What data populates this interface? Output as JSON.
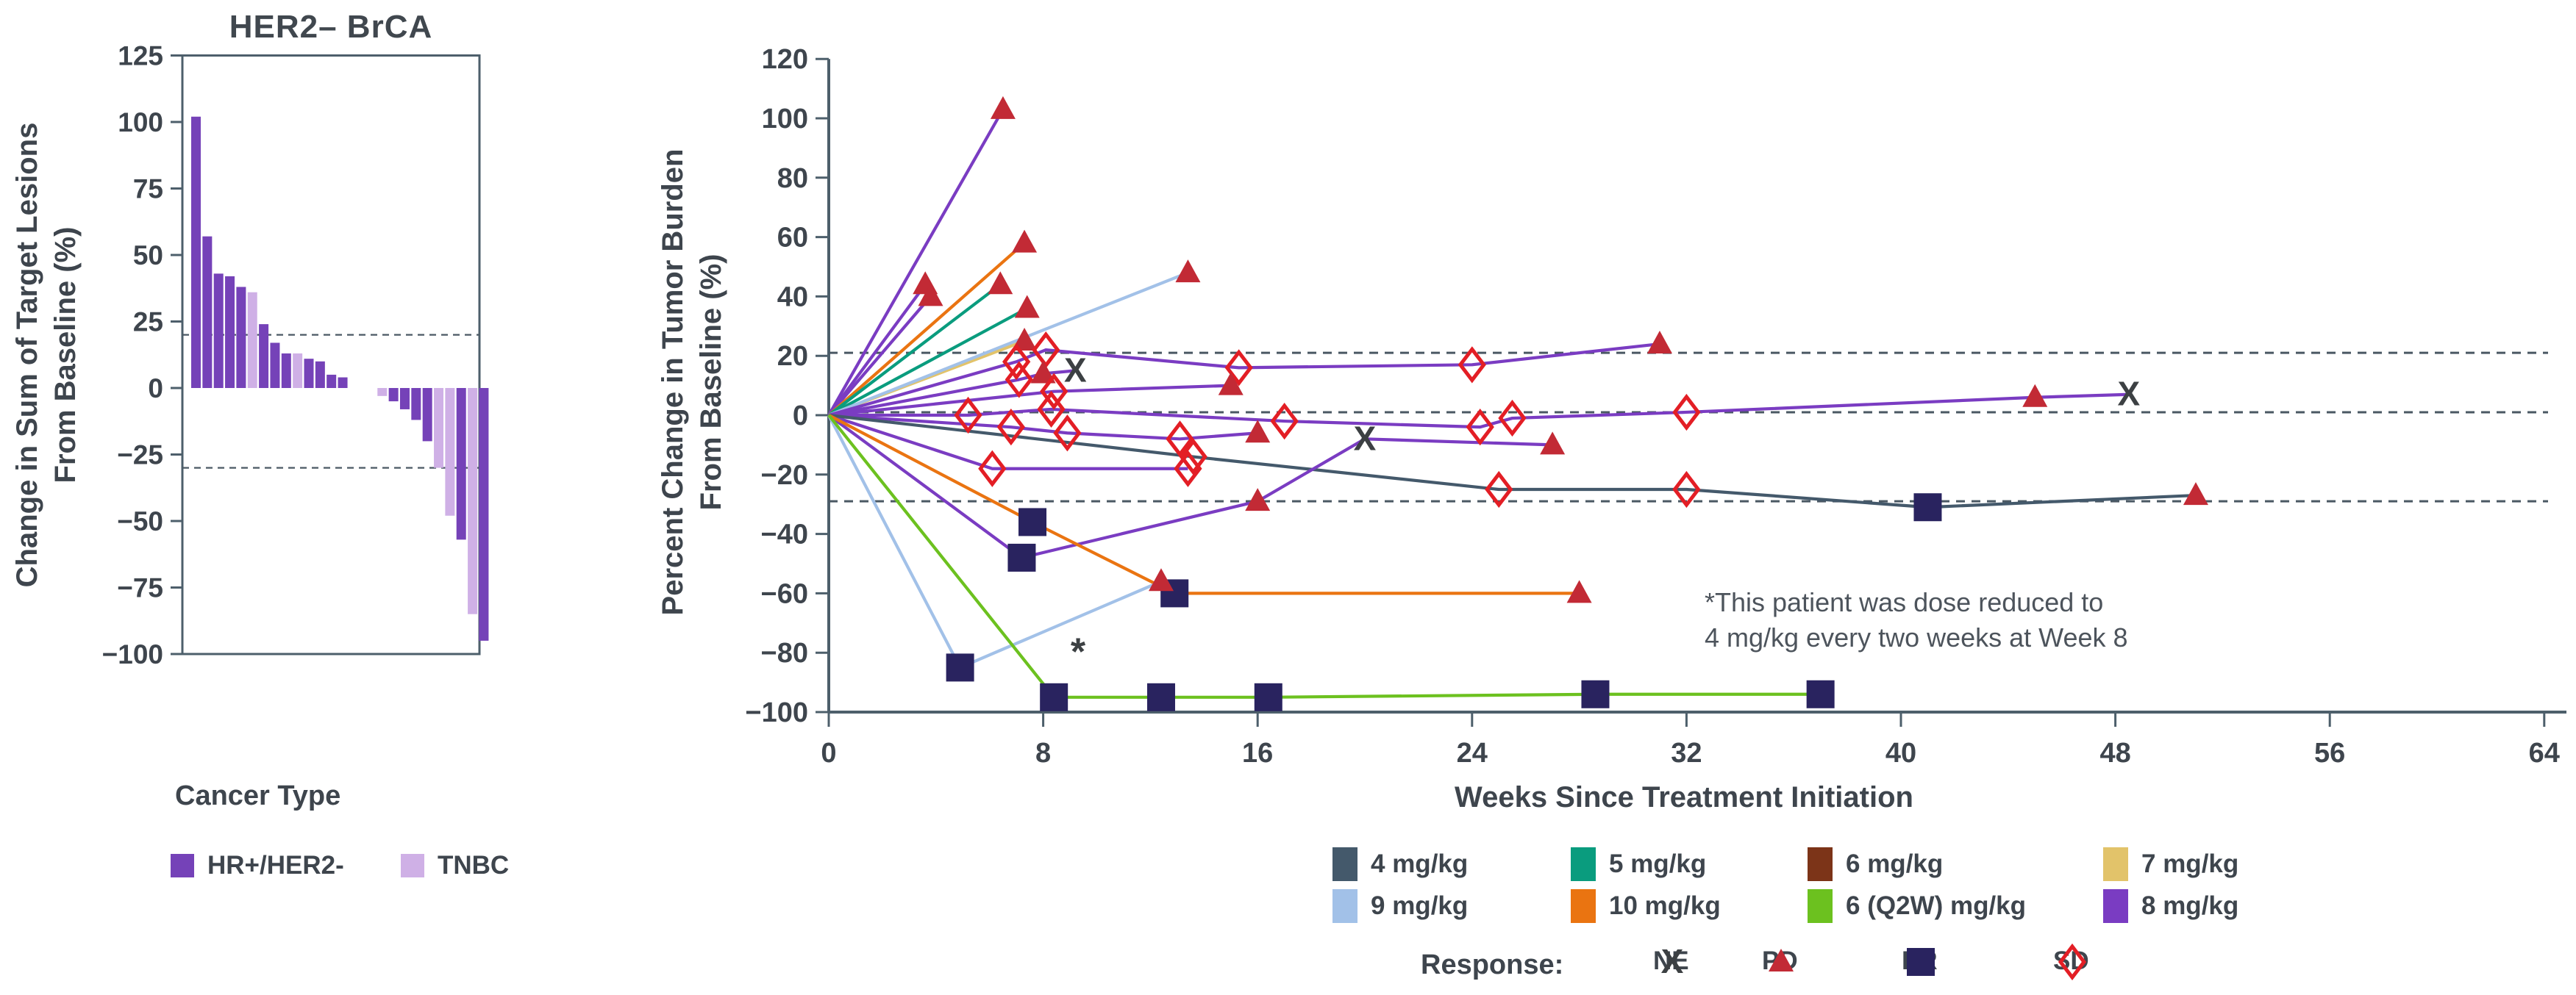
{
  "colors": {
    "hr_her2neg": "#7542b8",
    "tnbc": "#cfb0e6",
    "mg4": "#44596b",
    "mg5": "#0a9c7e",
    "mg6": "#7c3418",
    "mg7": "#e2c36a",
    "mg9": "#a2c1e8",
    "mg10": "#ea7411",
    "mg6q2w": "#6cc11f",
    "mg8": "#7a3cc2",
    "pd": "#c22a35",
    "pr": "#29235f",
    "sd": "#e31e25",
    "ne": "#3c4043",
    "axis": "#4d5f6b",
    "text": "#3e454d",
    "dash": "#4a5863"
  },
  "chart_data": [
    {
      "type": "bar",
      "name": "waterfall",
      "title": "HER2– BrCA",
      "ylabel_lines": [
        "Change in Sum of Target Lesions",
        "From Baseline (%)"
      ],
      "xlabel": "Cancer Type",
      "ylim": [
        -100,
        125
      ],
      "y_ticks": [
        125,
        100,
        75,
        50,
        25,
        0,
        -25,
        -50,
        -75,
        -100
      ],
      "reference_lines": [
        20,
        -30
      ],
      "grid": "off",
      "legend": [
        {
          "label": "HR+/HER2-",
          "key": "hr_her2neg"
        },
        {
          "label": "TNBC",
          "key": "tnbc"
        }
      ],
      "bars": [
        {
          "value": 102,
          "group": "hr_her2neg"
        },
        {
          "value": 57,
          "group": "hr_her2neg"
        },
        {
          "value": 43,
          "group": "hr_her2neg"
        },
        {
          "value": 42,
          "group": "hr_her2neg"
        },
        {
          "value": 38,
          "group": "hr_her2neg"
        },
        {
          "value": 36,
          "group": "tnbc"
        },
        {
          "value": 24,
          "group": "hr_her2neg"
        },
        {
          "value": 17,
          "group": "hr_her2neg"
        },
        {
          "value": 13,
          "group": "hr_her2neg"
        },
        {
          "value": 13,
          "group": "tnbc"
        },
        {
          "value": 11,
          "group": "hr_her2neg"
        },
        {
          "value": 10,
          "group": "hr_her2neg"
        },
        {
          "value": 5,
          "group": "hr_her2neg"
        },
        {
          "value": 4,
          "group": "hr_her2neg"
        },
        {
          "value": -3,
          "group": "tnbc"
        },
        {
          "value": -5,
          "group": "hr_her2neg"
        },
        {
          "value": -8,
          "group": "hr_her2neg"
        },
        {
          "value": -12,
          "group": "hr_her2neg"
        },
        {
          "value": -20,
          "group": "hr_her2neg"
        },
        {
          "value": -30,
          "group": "tnbc"
        },
        {
          "value": -48,
          "group": "tnbc"
        },
        {
          "value": -57,
          "group": "hr_her2neg"
        },
        {
          "value": -85,
          "group": "tnbc"
        },
        {
          "value": -95,
          "group": "hr_her2neg"
        }
      ]
    },
    {
      "type": "line",
      "name": "spider",
      "ylabel_lines": [
        "Percent Change in Tumor Burden",
        "From Baseline (%)"
      ],
      "xlabel": "Weeks Since Treatment Initiation",
      "ylim": [
        -100,
        120
      ],
      "xlim": [
        0,
        64
      ],
      "y_ticks": [
        120,
        100,
        80,
        60,
        40,
        20,
        0,
        -20,
        -40,
        -60,
        -80,
        -100
      ],
      "x_ticks": [
        0,
        8,
        16,
        24,
        32,
        40,
        48,
        56,
        64
      ],
      "reference_lines": [
        21,
        1,
        -29
      ],
      "grid": "off",
      "legend_position": "bottom",
      "dose_legend_rows": [
        [
          {
            "label": "4 mg/kg",
            "key": "mg4"
          },
          {
            "label": "5 mg/kg",
            "key": "mg5"
          },
          {
            "label": "6 mg/kg",
            "key": "mg6"
          },
          {
            "label": "7 mg/kg",
            "key": "mg7"
          }
        ],
        [
          {
            "label": "9 mg/kg",
            "key": "mg9"
          },
          {
            "label": "10 mg/kg",
            "key": "mg10"
          },
          {
            "label": "6 (Q2W) mg/kg",
            "key": "mg6q2w"
          },
          {
            "label": "8 mg/kg",
            "key": "mg8"
          }
        ]
      ],
      "response_legend": {
        "title": "Response:",
        "items": [
          {
            "marker": "NE",
            "label": "NE"
          },
          {
            "marker": "PD",
            "label": "PD"
          },
          {
            "marker": "PR",
            "label": "PR"
          },
          {
            "marker": "SD",
            "label": "SD"
          }
        ]
      },
      "annotation_lines": [
        "*This patient was dose reduced to",
        "4 mg/kg every two weeks at Week 8"
      ],
      "asterisk_point": {
        "week": 9.3,
        "value": -84
      },
      "series": [
        {
          "dose": "8 mg/kg",
          "key": "mg8",
          "points": [
            {
              "week": 0,
              "value": 0
            },
            {
              "week": 6.5,
              "value": 103,
              "response": "PD"
            }
          ]
        },
        {
          "dose": "8 mg/kg",
          "key": "mg8",
          "points": [
            {
              "week": 0,
              "value": 0
            },
            {
              "week": 3.6,
              "value": 44,
              "response": "PD"
            }
          ]
        },
        {
          "dose": "8 mg/kg",
          "key": "mg8",
          "points": [
            {
              "week": 0,
              "value": 0
            },
            {
              "week": 3.8,
              "value": 40,
              "response": "PD"
            }
          ]
        },
        {
          "dose": "10 mg/kg",
          "key": "mg10",
          "points": [
            {
              "week": 0,
              "value": 0
            },
            {
              "week": 7.3,
              "value": 58,
              "response": "PD"
            }
          ]
        },
        {
          "dose": "5 mg/kg",
          "key": "mg5",
          "points": [
            {
              "week": 0,
              "value": 0
            },
            {
              "week": 6.4,
              "value": 44,
              "response": "PD"
            }
          ]
        },
        {
          "dose": "5 mg/kg",
          "key": "mg5",
          "points": [
            {
              "week": 0,
              "value": 0
            },
            {
              "week": 7.4,
              "value": 36,
              "response": "PD"
            }
          ]
        },
        {
          "dose": "7 mg/kg",
          "key": "mg7",
          "points": [
            {
              "week": 0,
              "value": 0
            },
            {
              "week": 7.3,
              "value": 25,
              "response": "PD"
            }
          ]
        },
        {
          "dose": "9 mg/kg",
          "key": "mg9",
          "points": [
            {
              "week": 0,
              "value": 0
            },
            {
              "week": 13.4,
              "value": 48,
              "response": "PD"
            }
          ]
        },
        {
          "dose": "8 mg/kg",
          "key": "mg8",
          "points": [
            {
              "week": 0,
              "value": 0
            },
            {
              "week": 7,
              "value": 18,
              "response": "SD"
            },
            {
              "week": 8.1,
              "value": 22,
              "response": "SD"
            },
            {
              "week": 15.3,
              "value": 16,
              "response": "SD"
            },
            {
              "week": 24,
              "value": 17,
              "response": "SD"
            },
            {
              "week": 31,
              "value": 24,
              "response": "PD"
            }
          ]
        },
        {
          "dose": "8 mg/kg",
          "key": "mg8",
          "points": [
            {
              "week": 0,
              "value": 0
            },
            {
              "week": 7.1,
              "value": 12,
              "response": "SD"
            },
            {
              "week": 8,
              "value": 14,
              "response": "PD"
            },
            {
              "week": 9.2,
              "value": 15,
              "response": "NE"
            }
          ]
        },
        {
          "dose": "8 mg/kg",
          "key": "mg8",
          "points": [
            {
              "week": 0,
              "value": 0
            },
            {
              "week": 8.4,
              "value": 8,
              "response": "SD"
            },
            {
              "week": 15,
              "value": 10,
              "response": "PD"
            }
          ]
        },
        {
          "dose": "8 mg/kg",
          "key": "mg8",
          "points": [
            {
              "week": 0,
              "value": 0
            },
            {
              "week": 5.2,
              "value": 0,
              "response": "SD"
            },
            {
              "week": 8.3,
              "value": 2,
              "response": "SD"
            },
            {
              "week": 17,
              "value": -2,
              "response": "SD"
            },
            {
              "week": 24.3,
              "value": -4,
              "response": "SD"
            },
            {
              "week": 25.5,
              "value": -1,
              "response": "SD"
            },
            {
              "week": 32,
              "value": 1,
              "response": "SD"
            },
            {
              "week": 45,
              "value": 6,
              "response": "PD"
            },
            {
              "week": 48.5,
              "value": 7,
              "response": "NE"
            }
          ]
        },
        {
          "dose": "8 mg/kg",
          "key": "mg8",
          "points": [
            {
              "week": 0,
              "value": 0
            },
            {
              "week": 6.8,
              "value": -4,
              "response": "SD"
            },
            {
              "week": 8.9,
              "value": -6,
              "response": "SD"
            },
            {
              "week": 13.1,
              "value": -8,
              "response": "SD"
            },
            {
              "week": 16,
              "value": -6,
              "response": "PD"
            }
          ]
        },
        {
          "dose": "8 mg/kg",
          "key": "mg8",
          "points": [
            {
              "week": 0,
              "value": 0
            },
            {
              "week": 6.1,
              "value": -18,
              "response": "SD"
            },
            {
              "week": 13.4,
              "value": -18,
              "response": "SD"
            }
          ]
        },
        {
          "dose": "4 mg/kg",
          "key": "mg4",
          "points": [
            {
              "week": 0,
              "value": 0
            },
            {
              "week": 13.6,
              "value": -14,
              "response": "SD"
            },
            {
              "week": 25,
              "value": -25,
              "response": "SD"
            },
            {
              "week": 32,
              "value": -25,
              "response": "SD"
            },
            {
              "week": 41,
              "value": -31,
              "response": "PR"
            },
            {
              "week": 51,
              "value": -27,
              "response": "PD"
            }
          ]
        },
        {
          "dose": "8 mg/kg",
          "key": "mg8",
          "points": [
            {
              "week": 0,
              "value": 0
            },
            {
              "week": 7.2,
              "value": -48,
              "response": "PR"
            },
            {
              "week": 16,
              "value": -29,
              "response": "PD"
            },
            {
              "week": 20,
              "value": -8,
              "response": "NE"
            },
            {
              "week": 27,
              "value": -10,
              "response": "PD"
            }
          ]
        },
        {
          "dose": "10 mg/kg",
          "key": "mg10",
          "points": [
            {
              "week": 0,
              "value": 0
            },
            {
              "week": 7.6,
              "value": -36,
              "response": "PR"
            },
            {
              "week": 12.9,
              "value": -60,
              "response": "PR"
            },
            {
              "week": 28,
              "value": -60,
              "response": "PD"
            }
          ]
        },
        {
          "dose": "9 mg/kg",
          "key": "mg9",
          "points": [
            {
              "week": 0,
              "value": 0
            },
            {
              "week": 4.9,
              "value": -85,
              "response": "PR"
            },
            {
              "week": 12.4,
              "value": -56,
              "response": "PD"
            }
          ]
        },
        {
          "dose": "6 (Q2W) mg/kg",
          "key": "mg6q2w",
          "points": [
            {
              "week": 0,
              "value": 0
            },
            {
              "week": 8.4,
              "value": -95,
              "response": "PR"
            },
            {
              "week": 12.4,
              "value": -95,
              "response": "PR"
            },
            {
              "week": 16.4,
              "value": -95,
              "response": "PR"
            },
            {
              "week": 28.6,
              "value": -94,
              "response": "PR"
            },
            {
              "week": 37,
              "value": -94,
              "response": "PR"
            }
          ]
        }
      ]
    }
  ]
}
